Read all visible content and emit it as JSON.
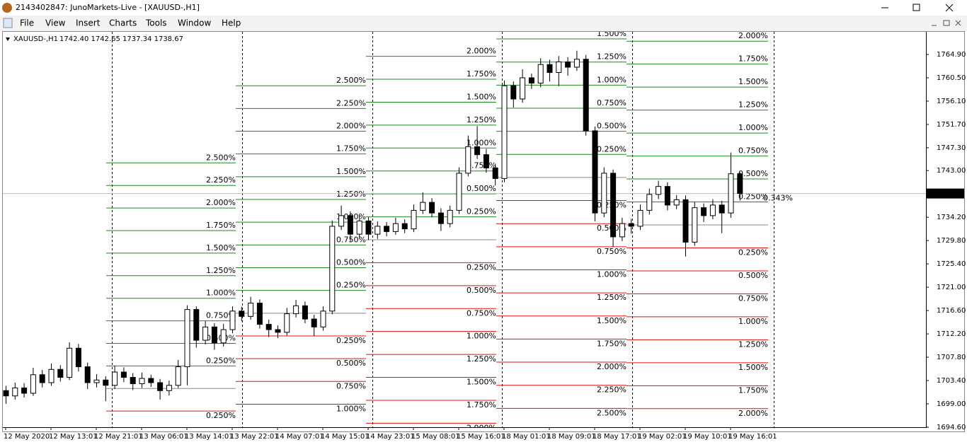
{
  "window": {
    "title": "2143402847: JunoMarkets-Live - [XAUUSD-,H1]",
    "menu": [
      "File",
      "View",
      "Insert",
      "Charts",
      "Tools",
      "Window",
      "Help"
    ]
  },
  "chart_data": {
    "type": "candlestick",
    "symbol": "XAUUSD-,H1",
    "quote": "1742.40 1742.65 1737.34 1738.67",
    "categories": [
      "12 May 2020",
      null,
      null,
      null,
      null,
      "12 May 13:01",
      null,
      null,
      null,
      null,
      "12 May 21:01",
      null,
      null,
      null,
      null,
      "13 May 06:01",
      null,
      null,
      null,
      null,
      "13 May 14:01",
      null,
      null,
      null,
      null,
      "13 May 22:01",
      null,
      null,
      null,
      null,
      "14 May 07:01",
      null,
      null,
      null,
      null,
      "14 May 15:01",
      null,
      null,
      null,
      null,
      "14 May 23:01",
      null,
      null,
      null,
      null,
      "15 May 08:01",
      null,
      null,
      null,
      null,
      "15 May 16:01",
      null,
      null,
      null,
      null,
      "18 May 01:01",
      null,
      null,
      null,
      null,
      "18 May 09:01",
      null,
      null,
      null,
      null,
      "18 May 17:01",
      null,
      null,
      null,
      null,
      "19 May 02:01",
      null,
      null,
      null,
      null,
      "19 May 10:01",
      null,
      null,
      null,
      null,
      "19 May 16:01",
      null
    ],
    "candles": [
      [
        1701.5,
        1702.4,
        1699.0,
        1700.5
      ],
      [
        1700.5,
        1703.0,
        1699.8,
        1702.0
      ],
      [
        1702.0,
        1702.9,
        1700.2,
        1701.0
      ],
      [
        1701.0,
        1705.8,
        1700.5,
        1704.5
      ],
      [
        1704.5,
        1705.4,
        1702.1,
        1703.0
      ],
      [
        1703.0,
        1706.6,
        1702.4,
        1705.5
      ],
      [
        1705.5,
        1706.3,
        1703.2,
        1704.0
      ],
      [
        1704.0,
        1710.6,
        1703.5,
        1709.5
      ],
      [
        1709.5,
        1710.3,
        1705.1,
        1706.0
      ],
      [
        1706.0,
        1706.8,
        1701.8,
        1703.0
      ],
      [
        1703.0,
        1704.6,
        1702.1,
        1703.5
      ],
      [
        1703.5,
        1704.2,
        1699.5,
        1702.5
      ],
      [
        1702.5,
        1706.2,
        1701.8,
        1705.0
      ],
      [
        1705.0,
        1705.9,
        1703.1,
        1704.0
      ],
      [
        1704.0,
        1704.8,
        1701.6,
        1702.8
      ],
      [
        1702.8,
        1704.9,
        1702.0,
        1703.8
      ],
      [
        1703.8,
        1704.5,
        1702.2,
        1703.0
      ],
      [
        1703.0,
        1703.7,
        1699.8,
        1701.5
      ],
      [
        1701.5,
        1703.4,
        1700.6,
        1702.5
      ],
      [
        1702.5,
        1707.3,
        1702.0,
        1706.0
      ],
      [
        1706.0,
        1717.6,
        1702.5,
        1716.8
      ],
      [
        1716.8,
        1717.4,
        1709.6,
        1711.0
      ],
      [
        1711.0,
        1714.6,
        1710.2,
        1713.5
      ],
      [
        1713.5,
        1714.2,
        1709.2,
        1710.5
      ],
      [
        1710.5,
        1714.1,
        1709.8,
        1713.0
      ],
      [
        1713.0,
        1717.4,
        1712.3,
        1716.5
      ],
      [
        1716.5,
        1717.3,
        1714.6,
        1715.5
      ],
      [
        1715.5,
        1719.2,
        1714.9,
        1718.0
      ],
      [
        1718.0,
        1718.7,
        1713.2,
        1714.0
      ],
      [
        1714.0,
        1714.9,
        1711.6,
        1713.0
      ],
      [
        1713.0,
        1713.8,
        1711.4,
        1712.5
      ],
      [
        1712.5,
        1717.1,
        1711.9,
        1716.0
      ],
      [
        1716.0,
        1718.6,
        1715.3,
        1717.5
      ],
      [
        1717.5,
        1718.3,
        1714.2,
        1715.0
      ],
      [
        1715.0,
        1715.8,
        1711.8,
        1713.5
      ],
      [
        1713.5,
        1717.4,
        1712.8,
        1716.5
      ],
      [
        1716.5,
        1733.6,
        1715.9,
        1732.5
      ],
      [
        1732.5,
        1736.4,
        1731.8,
        1734.5
      ],
      [
        1734.5,
        1735.3,
        1729.6,
        1731.0
      ],
      [
        1731.0,
        1734.6,
        1730.2,
        1733.5
      ],
      [
        1733.5,
        1734.2,
        1729.9,
        1731.0
      ],
      [
        1731.0,
        1733.4,
        1730.1,
        1732.5
      ],
      [
        1732.5,
        1733.3,
        1730.6,
        1731.5
      ],
      [
        1731.5,
        1734.1,
        1730.9,
        1733.0
      ],
      [
        1733.0,
        1733.8,
        1731.2,
        1732.0
      ],
      [
        1732.0,
        1736.6,
        1731.4,
        1735.5
      ],
      [
        1735.5,
        1738.9,
        1734.8,
        1737.0
      ],
      [
        1737.0,
        1737.8,
        1734.2,
        1735.0
      ],
      [
        1735.0,
        1735.9,
        1731.6,
        1733.0
      ],
      [
        1733.0,
        1736.4,
        1732.3,
        1735.5
      ],
      [
        1735.5,
        1743.6,
        1734.8,
        1742.5
      ],
      [
        1742.5,
        1749.6,
        1741.9,
        1747.5
      ],
      [
        1747.5,
        1751.4,
        1745.2,
        1746.0
      ],
      [
        1746.0,
        1747.1,
        1742.6,
        1743.5
      ],
      [
        1743.5,
        1744.3,
        1740.2,
        1741.5
      ],
      [
        1741.5,
        1760.0,
        1740.8,
        1759.0
      ],
      [
        1759.0,
        1759.8,
        1754.9,
        1756.5
      ],
      [
        1756.5,
        1762.1,
        1755.8,
        1760.5
      ],
      [
        1760.5,
        1761.3,
        1758.4,
        1759.5
      ],
      [
        1759.5,
        1764.2,
        1758.7,
        1763.0
      ],
      [
        1763.0,
        1763.9,
        1759.8,
        1761.5
      ],
      [
        1761.5,
        1764.6,
        1758.9,
        1763.5
      ],
      [
        1763.5,
        1764.4,
        1760.9,
        1762.5
      ],
      [
        1762.5,
        1765.6,
        1761.8,
        1764.0
      ],
      [
        1764.0,
        1764.8,
        1749.6,
        1750.5
      ],
      [
        1750.5,
        1751.3,
        1733.4,
        1735.0
      ],
      [
        1735.0,
        1743.6,
        1734.2,
        1742.5
      ],
      [
        1742.5,
        1743.2,
        1728.6,
        1730.5
      ],
      [
        1730.5,
        1734.1,
        1729.7,
        1733.0
      ],
      [
        1733.0,
        1733.9,
        1731.1,
        1732.5
      ],
      [
        1732.5,
        1736.6,
        1731.8,
        1735.5
      ],
      [
        1735.5,
        1739.6,
        1734.7,
        1738.5
      ],
      [
        1738.5,
        1741.1,
        1737.6,
        1740.0
      ],
      [
        1740.0,
        1740.8,
        1735.5,
        1736.5
      ],
      [
        1736.5,
        1738.4,
        1735.7,
        1737.5
      ],
      [
        1737.5,
        1738.3,
        1726.8,
        1729.5
      ],
      [
        1729.5,
        1737.1,
        1728.8,
        1736.0
      ],
      [
        1736.0,
        1736.8,
        1733.3,
        1734.5
      ],
      [
        1734.5,
        1737.6,
        1733.8,
        1736.5
      ],
      [
        1736.5,
        1737.3,
        1731.2,
        1735.0
      ],
      [
        1735.0,
        1746.4,
        1734.1,
        1742.4
      ],
      [
        1742.4,
        1742.65,
        1737.34,
        1738.67
      ]
    ],
    "last_price": 1738.67,
    "ylim": [
      1694.6,
      1769.3
    ],
    "yticks": [
      {
        "value": 1764.9,
        "label": "1764.90"
      },
      {
        "value": 1760.5,
        "label": "1760.50"
      },
      {
        "value": 1756.1,
        "label": "1756.10"
      },
      {
        "value": 1751.7,
        "label": "1751.70"
      },
      {
        "value": 1747.3,
        "label": "1747.30"
      },
      {
        "value": 1743.0,
        "label": "1743.00"
      },
      {
        "value": 1734.2,
        "label": "1734.20"
      },
      {
        "value": 1729.8,
        "label": "1729.80"
      },
      {
        "value": 1725.4,
        "label": "1725.40"
      },
      {
        "value": 1721.0,
        "label": "1721.00"
      },
      {
        "value": 1716.6,
        "label": "1716.60"
      },
      {
        "value": 1712.2,
        "label": "1712.20"
      },
      {
        "value": 1707.8,
        "label": "1707.80"
      },
      {
        "value": 1703.4,
        "label": "1703.40"
      },
      {
        "value": 1699.0,
        "label": "1699.00"
      },
      {
        "value": 1694.6,
        "label": "1694.60"
      }
    ],
    "up_color": "#1f8a1f",
    "down_color": "#e01010",
    "levels": [
      {
        "base": 1701.9,
        "up": [
          {
            "value": 0.25,
            "label": "0.250%"
          },
          {
            "value": 0.5,
            "label": "0.500%"
          },
          {
            "value": 0.75,
            "label": "0.750%"
          },
          {
            "value": 1.0,
            "label": "1.000%"
          },
          {
            "value": 1.25,
            "label": "1.250%"
          },
          {
            "value": 1.5,
            "label": "1.500%"
          },
          {
            "value": 1.75,
            "label": "1.750%"
          },
          {
            "value": 2.0,
            "label": "2.000%"
          },
          {
            "value": 2.25,
            "label": "2.250%"
          },
          {
            "value": 2.5,
            "label": "2.500%"
          }
        ],
        "down": [
          {
            "value": 0.25,
            "label": "0.250%"
          }
        ]
      },
      {
        "base": 1716.1,
        "up": [
          {
            "value": 0.25,
            "label": "0.250%"
          },
          {
            "value": 0.5,
            "label": "0.500%"
          },
          {
            "value": 0.75,
            "label": "0.750%"
          },
          {
            "value": 1.0,
            "label": "1.000%"
          },
          {
            "value": 1.25,
            "label": "1.250%"
          },
          {
            "value": 1.5,
            "label": "1.500%"
          },
          {
            "value": 1.75,
            "label": "1.750%"
          },
          {
            "value": 2.0,
            "label": "2.000%"
          },
          {
            "value": 2.25,
            "label": "2.250%"
          },
          {
            "value": 2.5,
            "label": "2.500%"
          }
        ],
        "down": [
          {
            "value": 0.25,
            "label": "0.250%"
          },
          {
            "value": 0.5,
            "label": "0.500%"
          },
          {
            "value": 0.75,
            "label": "0.750%"
          },
          {
            "value": 1.0,
            "label": "1.000%"
          }
        ]
      },
      {
        "base": 1729.95,
        "up": [
          {
            "value": 0.25,
            "label": "0.250%"
          },
          {
            "value": 0.5,
            "label": "0.500%"
          },
          {
            "value": 0.75,
            "label": "0.750%"
          },
          {
            "value": 1.0,
            "label": "1.000%"
          },
          {
            "value": 1.25,
            "label": "1.250%"
          },
          {
            "value": 1.5,
            "label": "1.500%"
          },
          {
            "value": 1.75,
            "label": "1.750%"
          },
          {
            "value": 2.0,
            "label": "2.000%"
          }
        ],
        "down": [
          {
            "value": 0.25,
            "label": "0.250%"
          },
          {
            "value": 0.5,
            "label": "0.500%"
          },
          {
            "value": 0.75,
            "label": "0.750%"
          },
          {
            "value": 1.0,
            "label": "1.000%"
          },
          {
            "value": 1.25,
            "label": "1.250%"
          },
          {
            "value": 1.5,
            "label": "1.500%"
          },
          {
            "value": 1.75,
            "label": "1.750%"
          },
          {
            "value": 2.0,
            "label": "2.000%"
          }
        ]
      },
      {
        "base": 1741.7,
        "up": [
          {
            "value": 0.25,
            "label": "0.250%"
          },
          {
            "value": 0.5,
            "label": "0.500%"
          },
          {
            "value": 0.75,
            "label": "0.750%"
          },
          {
            "value": 1.0,
            "label": "1.000%"
          },
          {
            "value": 1.25,
            "label": "1.250%"
          },
          {
            "value": 1.5,
            "label": "1.500%"
          }
        ],
        "down": [
          {
            "value": 0.25,
            "label": "0.250%"
          },
          {
            "value": 0.5,
            "label": "0.500%"
          },
          {
            "value": 0.75,
            "label": "0.750%"
          },
          {
            "value": 1.0,
            "label": "1.000%"
          },
          {
            "value": 1.25,
            "label": "1.250%"
          },
          {
            "value": 1.5,
            "label": "1.500%"
          },
          {
            "value": 1.75,
            "label": "1.750%"
          },
          {
            "value": 2.0,
            "label": "2.000%"
          },
          {
            "value": 2.25,
            "label": "2.250%"
          },
          {
            "value": 2.5,
            "label": "2.500%"
          }
        ]
      },
      {
        "base": 1732.75,
        "up": [
          {
            "value": 0.25,
            "label": "0.250%"
          },
          {
            "value": 0.5,
            "label": "0.500%"
          },
          {
            "value": 0.75,
            "label": "0.750%"
          },
          {
            "value": 1.0,
            "label": "1.000%"
          },
          {
            "value": 1.25,
            "label": "1.250%"
          },
          {
            "value": 1.5,
            "label": "1.500%"
          },
          {
            "value": 1.75,
            "label": "1.750%"
          },
          {
            "value": 2.0,
            "label": "2.000%"
          }
        ],
        "down": [
          {
            "value": 0.25,
            "label": "0.250%"
          },
          {
            "value": 0.5,
            "label": "0.500%"
          },
          {
            "value": 0.75,
            "label": "0.750%"
          },
          {
            "value": 1.0,
            "label": "1.000%"
          },
          {
            "value": 1.25,
            "label": "1.250%"
          },
          {
            "value": 1.5,
            "label": "1.500%"
          },
          {
            "value": 1.75,
            "label": "1.750%"
          },
          {
            "value": 2.0,
            "label": "2.000%"
          }
        ],
        "extra": {
          "value": 0.343,
          "label": "0.343%"
        }
      }
    ]
  }
}
